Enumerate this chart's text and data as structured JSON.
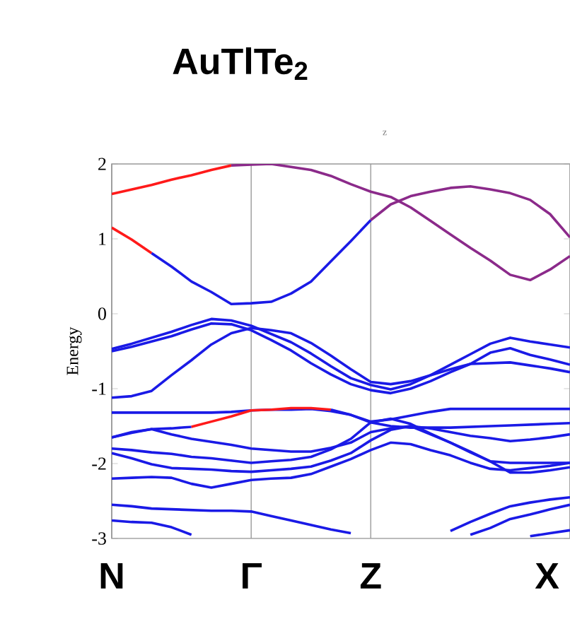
{
  "chart_data": {
    "type": "line",
    "title": "AuTlTe$_{2}$",
    "ylabel": "Energy",
    "annotations": [
      "z"
    ],
    "categories": [
      "N",
      null,
      null,
      null,
      null,
      null,
      null,
      "Γ",
      null,
      null,
      null,
      null,
      null,
      "Z",
      null,
      null,
      null,
      null,
      null,
      null,
      null,
      null,
      null,
      "X"
    ],
    "ylim": [
      -3,
      2
    ],
    "yticks": [
      -3,
      -2,
      -1,
      0,
      1,
      2
    ],
    "grid": "x",
    "marker": "none",
    "line_style": "solid",
    "series": [
      {
        "color": "#ff1a1a",
        "values": [
          1.6,
          1.66,
          1.72,
          1.79,
          1.85,
          1.92,
          1.98,
          null,
          null,
          null,
          null,
          null,
          null,
          null,
          null,
          null,
          null,
          null,
          null,
          null,
          null,
          null,
          null,
          null
        ]
      },
      {
        "color": "#8b2a8a",
        "values": [
          null,
          null,
          null,
          null,
          null,
          null,
          1.98,
          1.99,
          2.0,
          1.96,
          1.92,
          1.84,
          1.73,
          1.63,
          1.56,
          1.42,
          1.24,
          1.06,
          0.88,
          0.71,
          0.52,
          0.45,
          0.59,
          0.77
        ]
      },
      {
        "color": "#ff1a1a",
        "values": [
          1.15,
          0.99,
          0.81,
          null,
          null,
          null,
          null,
          null,
          null,
          null,
          null,
          null,
          null,
          null,
          null,
          null,
          null,
          null,
          null,
          null,
          null,
          null,
          null,
          null
        ]
      },
      {
        "color": "#1a1ae6",
        "values": [
          null,
          null,
          0.81,
          0.63,
          0.43,
          0.29,
          0.13,
          0.14,
          0.16,
          0.27,
          0.43,
          0.7,
          0.97,
          1.25,
          null,
          null,
          null,
          null,
          null,
          null,
          null,
          null,
          null,
          null
        ]
      },
      {
        "color": "#8b2a8a",
        "values": [
          null,
          null,
          null,
          null,
          null,
          null,
          null,
          null,
          null,
          null,
          null,
          null,
          null,
          1.25,
          1.46,
          1.57,
          1.63,
          1.68,
          1.7,
          1.66,
          1.61,
          1.52,
          1.33,
          1.02
        ]
      },
      {
        "color": "#1a1ae6",
        "values": [
          -0.47,
          -0.4,
          -0.32,
          -0.24,
          -0.15,
          -0.07,
          -0.09,
          -0.16,
          -0.27,
          -0.38,
          -0.53,
          -0.7,
          -0.86,
          -0.95,
          -1.01,
          -0.94,
          -0.82,
          -0.68,
          -0.54,
          -0.4,
          -0.32,
          -0.37,
          -0.41,
          -0.45
        ]
      },
      {
        "color": "#1a1ae6",
        "values": [
          -0.5,
          -0.44,
          -0.37,
          -0.3,
          -0.21,
          -0.13,
          -0.14,
          -0.22,
          -0.35,
          -0.49,
          -0.66,
          -0.81,
          -0.94,
          -1.02,
          -1.06,
          -1.0,
          -0.9,
          -0.78,
          -0.67,
          -0.52,
          -0.46,
          -0.55,
          -0.61,
          -0.68
        ]
      },
      {
        "color": "#1a1ae6",
        "values": [
          -1.12,
          -1.1,
          -1.03,
          -0.82,
          -0.62,
          -0.41,
          -0.26,
          -0.19,
          -0.22,
          -0.26,
          -0.39,
          -0.56,
          -0.74,
          -0.91,
          -0.94,
          -0.9,
          -0.82,
          -0.74,
          -0.67,
          -0.66,
          -0.65,
          -0.69,
          -0.73,
          -0.78
        ]
      },
      {
        "color": "#1a1ae6",
        "values": [
          -1.32,
          -1.32,
          -1.32,
          -1.32,
          -1.32,
          -1.32,
          -1.31,
          -1.29,
          -1.28,
          -1.28,
          -1.27,
          -1.3,
          -1.35,
          -1.44,
          -1.41,
          -1.36,
          -1.31,
          -1.27,
          -1.27,
          -1.27,
          -1.27,
          -1.27,
          -1.27,
          -1.27
        ]
      },
      {
        "color": "#1a1ae6",
        "values": [
          -1.65,
          -1.59,
          -1.54,
          -1.53,
          -1.51,
          null,
          null,
          null,
          null,
          null,
          null,
          null,
          null,
          null,
          null,
          null,
          null,
          null,
          null,
          null,
          null,
          null,
          null,
          null
        ]
      },
      {
        "color": "#ff1a1a",
        "values": [
          null,
          null,
          null,
          null,
          -1.51,
          -1.44,
          -1.37,
          -1.29,
          -1.28,
          -1.26,
          -1.26,
          -1.28,
          null,
          null,
          null,
          null,
          null,
          null,
          null,
          null,
          null,
          null,
          null,
          null
        ]
      },
      {
        "color": "#1a1ae6",
        "values": [
          null,
          null,
          null,
          null,
          null,
          null,
          null,
          null,
          null,
          null,
          null,
          -1.28,
          -1.35,
          -1.45,
          -1.5,
          -1.52,
          -1.52,
          -1.52,
          -1.51,
          -1.5,
          -1.49,
          -1.48,
          -1.47,
          -1.46
        ]
      },
      {
        "color": "#1a1ae6",
        "values": [
          -1.65,
          -1.58,
          -1.54,
          -1.61,
          -1.67,
          -1.71,
          -1.75,
          -1.8,
          -1.82,
          -1.84,
          -1.84,
          -1.79,
          -1.72,
          -1.58,
          -1.53,
          -1.5,
          -1.53,
          -1.58,
          -1.63,
          -1.66,
          -1.7,
          -1.68,
          -1.65,
          -1.61
        ]
      },
      {
        "color": "#1a1ae6",
        "values": [
          -1.8,
          -1.82,
          -1.85,
          -1.87,
          -1.91,
          -1.93,
          -1.96,
          -1.99,
          -1.97,
          -1.95,
          -1.91,
          -1.81,
          -1.67,
          -1.45,
          -1.4,
          -1.47,
          -1.6,
          -1.72,
          -1.85,
          -1.97,
          -1.99,
          -1.99,
          -1.99,
          -1.99
        ]
      },
      {
        "color": "#1a1ae6",
        "values": [
          -1.86,
          -1.93,
          -2.01,
          -2.06,
          -2.07,
          -2.08,
          -2.1,
          -2.11,
          -2.09,
          -2.07,
          -2.04,
          -1.96,
          -1.86,
          -1.69,
          -1.55,
          -1.5,
          -1.61,
          -1.72,
          -1.84,
          -1.97,
          -2.12,
          -2.12,
          -2.09,
          -2.05
        ]
      },
      {
        "color": "#1a1ae6",
        "values": [
          -2.2,
          -2.19,
          -2.18,
          -2.19,
          -2.27,
          -2.32,
          -2.27,
          -2.22,
          -2.2,
          -2.19,
          -2.14,
          -2.04,
          -1.94,
          -1.82,
          -1.72,
          -1.74,
          -1.82,
          -1.89,
          -1.99,
          -2.07,
          -2.09,
          -2.06,
          -2.03,
          -1.99
        ]
      },
      {
        "color": "#1a1ae6",
        "values": [
          -2.55,
          -2.57,
          -2.6,
          -2.61,
          -2.62,
          -2.63,
          -2.63,
          -2.64,
          -2.7,
          -2.76,
          -2.82,
          -2.88,
          -2.93,
          null,
          null,
          null,
          null,
          null,
          null,
          null,
          null,
          null,
          null,
          null
        ]
      },
      {
        "color": "#1a1ae6",
        "values": [
          -2.76,
          -2.78,
          -2.79,
          -2.85,
          -2.95,
          null,
          null,
          null,
          null,
          null,
          null,
          null,
          null,
          null,
          null,
          null,
          null,
          null,
          null,
          null,
          null,
          null,
          null,
          null
        ]
      },
      {
        "color": "#1a1ae6",
        "values": [
          null,
          null,
          null,
          null,
          null,
          null,
          null,
          null,
          null,
          null,
          null,
          null,
          null,
          null,
          null,
          null,
          null,
          -2.9,
          -2.78,
          -2.67,
          -2.57,
          -2.52,
          -2.48,
          -2.45
        ]
      },
      {
        "color": "#1a1ae6",
        "values": [
          null,
          null,
          null,
          null,
          null,
          null,
          null,
          null,
          null,
          null,
          null,
          null,
          null,
          null,
          null,
          null,
          null,
          null,
          -2.95,
          -2.86,
          -2.74,
          -2.68,
          -2.61,
          -2.55
        ]
      },
      {
        "color": "#1a1ae6",
        "values": [
          null,
          null,
          null,
          null,
          null,
          null,
          null,
          null,
          null,
          null,
          null,
          null,
          null,
          null,
          null,
          null,
          null,
          null,
          null,
          null,
          null,
          -2.97,
          -2.93,
          -2.89
        ]
      }
    ]
  }
}
